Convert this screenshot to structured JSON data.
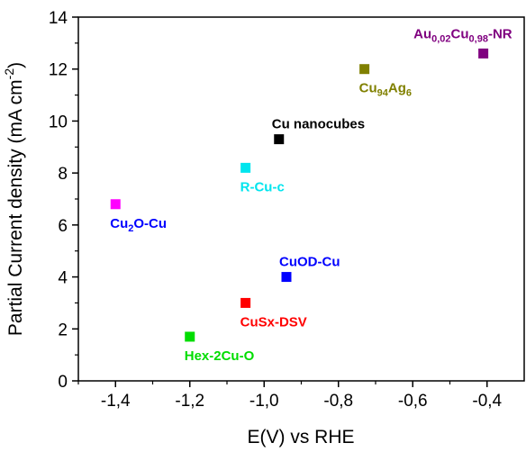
{
  "chart_data": {
    "type": "scatter",
    "xlabel": "E(V) vs RHE",
    "ylabel": "Partial Current density (mA cm⁻²)",
    "xlim": [
      -1.5,
      -0.3
    ],
    "ylim": [
      0,
      14
    ],
    "x_ticks": [
      "-1,4",
      "-1,2",
      "-1,0",
      "-0,8",
      "-0,6",
      "-0,4"
    ],
    "x_tick_values": [
      -1.4,
      -1.2,
      -1.0,
      -0.8,
      -0.6,
      -0.4
    ],
    "y_ticks": [
      "0",
      "2",
      "4",
      "6",
      "8",
      "10",
      "12",
      "14"
    ],
    "y_tick_values": [
      0,
      2,
      4,
      6,
      8,
      10,
      12,
      14
    ],
    "grid": false,
    "points": [
      {
        "label_main": "Au",
        "label_sub1": "0,02",
        "label_mid": "Cu",
        "label_sub2": "0,98",
        "label_tail": "-NR",
        "x": -0.41,
        "y": 12.6,
        "color": "#800080",
        "label_pos": "above-left"
      },
      {
        "label_main": "Cu",
        "label_sub1": "94",
        "label_mid": "Ag",
        "label_sub2": "6",
        "label_tail": "",
        "x": -0.73,
        "y": 12.0,
        "color": "#808000",
        "label_pos": "below"
      },
      {
        "label_main": "Cu nanocubes",
        "label_sub1": "",
        "label_mid": "",
        "label_sub2": "",
        "label_tail": "",
        "x": -0.96,
        "y": 9.3,
        "color": "#000000",
        "label_pos": "above"
      },
      {
        "label_main": "R-Cu-c",
        "label_sub1": "",
        "label_mid": "",
        "label_sub2": "",
        "label_tail": "",
        "x": -1.05,
        "y": 8.2,
        "color": "#00e5ee",
        "label_pos": "below"
      },
      {
        "label_main": "Cu",
        "label_sub1": "2",
        "label_mid": "O-Cu",
        "label_sub2": "",
        "label_tail": "",
        "x": -1.4,
        "y": 6.8,
        "color": "#ff00ff",
        "label_pos": "below"
      },
      {
        "label_main": "CuOD-Cu",
        "label_sub1": "",
        "label_mid": "",
        "label_sub2": "",
        "label_tail": "",
        "x": -0.94,
        "y": 4.0,
        "color": "#0000ff",
        "label_pos": "above"
      },
      {
        "label_main": "CuSx-DSV",
        "label_sub1": "",
        "label_mid": "",
        "label_sub2": "",
        "label_tail": "",
        "x": -1.05,
        "y": 3.0,
        "color": "#ff0000",
        "label_pos": "below"
      },
      {
        "label_main": "Hex-2Cu-O",
        "label_sub1": "",
        "label_mid": "",
        "label_sub2": "",
        "label_tail": "",
        "x": -1.2,
        "y": 1.7,
        "color": "#00dd00",
        "label_pos": "below"
      }
    ],
    "label_colors": [
      "#800080",
      "#808000",
      "#000000",
      "#00e5ee",
      "#0000ff",
      "#0000ff",
      "#ff0000",
      "#00dd00"
    ]
  }
}
